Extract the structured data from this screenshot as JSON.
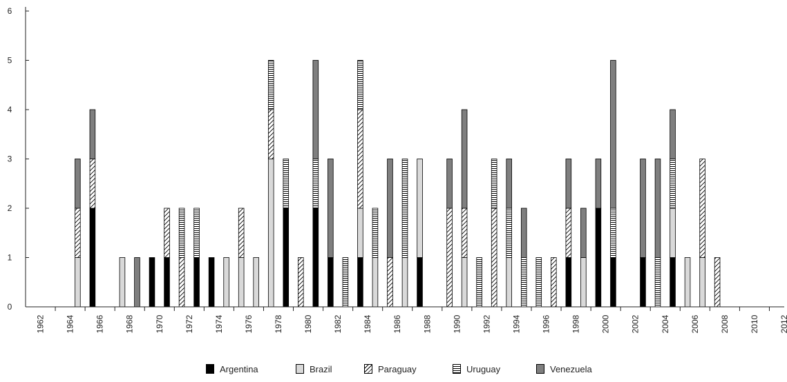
{
  "chart_data": {
    "type": "bar",
    "stacked": true,
    "categories": [
      "1962",
      "1963",
      "1964",
      "1965",
      "1966",
      "1967",
      "1968",
      "1969",
      "1970",
      "1971",
      "1972",
      "1973",
      "1974",
      "1975",
      "1976",
      "1977",
      "1978",
      "1979",
      "1980",
      "1981",
      "1982",
      "1983",
      "1984",
      "1985",
      "1986",
      "1987",
      "1988",
      "1989",
      "1990",
      "1991",
      "1992",
      "1993",
      "1994",
      "1995",
      "1996",
      "1997",
      "1998",
      "1999",
      "2000",
      "2001",
      "2002",
      "2003",
      "2004",
      "2005",
      "2006",
      "2007",
      "2008",
      "2009",
      "2010",
      "2011",
      "2012"
    ],
    "x_tick_labels": [
      "1962",
      "1964",
      "1966",
      "1968",
      "1970",
      "1972",
      "1974",
      "1976",
      "1978",
      "1980",
      "1982",
      "1984",
      "1986",
      "1988",
      "1990",
      "1992",
      "1994",
      "1996",
      "1998",
      "2000",
      "2002",
      "2004",
      "2006",
      "2008",
      "2010",
      "2012"
    ],
    "y_tick_labels": [
      "0",
      "1",
      "2",
      "3",
      "4",
      "5",
      "6"
    ],
    "ylim": [
      0,
      6
    ],
    "title": "",
    "xlabel": "",
    "ylabel": "",
    "series": [
      {
        "name": "Argentina",
        "pattern": "solid-black",
        "values": [
          0,
          0,
          0,
          0,
          2,
          0,
          0,
          0,
          1,
          1,
          0,
          1,
          1,
          0,
          0,
          0,
          0,
          2,
          0,
          2,
          1,
          0,
          1,
          0,
          0,
          0,
          1,
          0,
          0,
          0,
          0,
          0,
          0,
          0,
          0,
          0,
          1,
          0,
          2,
          1,
          0,
          1,
          0,
          1,
          0,
          0,
          0,
          0,
          0,
          0,
          0
        ]
      },
      {
        "name": "Brazil",
        "pattern": "light-gray",
        "values": [
          0,
          0,
          0,
          1,
          0,
          0,
          1,
          0,
          0,
          0,
          0,
          0,
          0,
          1,
          1,
          1,
          3,
          0,
          0,
          0,
          0,
          0,
          1,
          1,
          0,
          1,
          2,
          0,
          0,
          1,
          0,
          0,
          1,
          0,
          0,
          0,
          0,
          1,
          0,
          0,
          0,
          0,
          0,
          1,
          1,
          1,
          0,
          0,
          0,
          0,
          0
        ]
      },
      {
        "name": "Paraguay",
        "pattern": "diagonal-hatch",
        "values": [
          0,
          0,
          0,
          1,
          1,
          0,
          0,
          0,
          0,
          1,
          1,
          0,
          0,
          0,
          1,
          0,
          1,
          0,
          1,
          0,
          0,
          0,
          2,
          0,
          1,
          0,
          0,
          0,
          2,
          1,
          0,
          2,
          0,
          0,
          0,
          1,
          1,
          0,
          0,
          0,
          0,
          0,
          0,
          0,
          0,
          2,
          1,
          0,
          0,
          0,
          0
        ]
      },
      {
        "name": "Uruguay",
        "pattern": "horizontal-lines",
        "values": [
          0,
          0,
          0,
          0,
          0,
          0,
          0,
          0,
          0,
          0,
          1,
          1,
          0,
          0,
          0,
          0,
          1,
          1,
          0,
          1,
          0,
          1,
          1,
          1,
          0,
          2,
          0,
          0,
          0,
          0,
          1,
          1,
          1,
          1,
          1,
          0,
          0,
          0,
          0,
          1,
          0,
          0,
          1,
          1,
          0,
          0,
          0,
          0,
          0,
          0,
          0
        ]
      },
      {
        "name": "Venezuela",
        "pattern": "dark-gray",
        "values": [
          0,
          0,
          0,
          1,
          1,
          0,
          0,
          1,
          0,
          0,
          0,
          0,
          0,
          0,
          0,
          0,
          0,
          0,
          0,
          2,
          2,
          0,
          0,
          0,
          2,
          0,
          0,
          0,
          1,
          2,
          0,
          0,
          1,
          1,
          0,
          0,
          1,
          1,
          1,
          3,
          0,
          2,
          2,
          1,
          0,
          0,
          0,
          0,
          0,
          0,
          0
        ]
      }
    ],
    "legend_position": "bottom-center",
    "grid": false
  },
  "colors": {
    "argentina": "#000000",
    "brazil": "#d9d9d9",
    "venezuela": "#7f7f7f",
    "axis": "#222222"
  }
}
